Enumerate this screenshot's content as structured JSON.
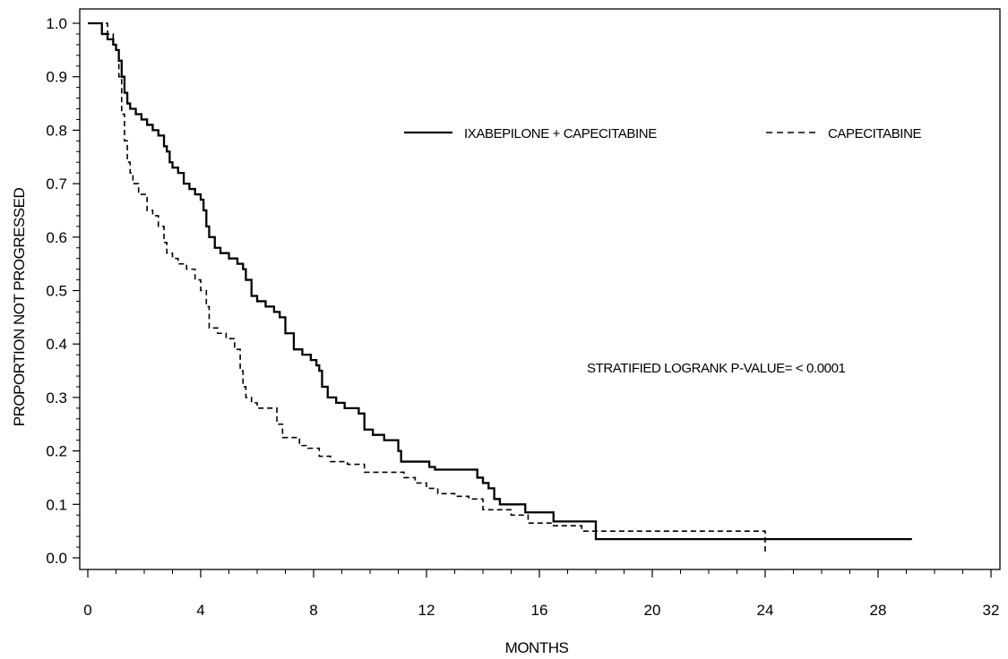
{
  "chart_data": {
    "type": "line",
    "title": "",
    "xlabel": "MONTHS",
    "ylabel": "PROPORTION NOT PROGRESSED",
    "xlim": [
      0,
      32
    ],
    "ylim": [
      0,
      1.0
    ],
    "x_ticks": [
      0,
      4,
      8,
      12,
      16,
      20,
      24,
      28,
      32
    ],
    "y_ticks": [
      0.0,
      0.1,
      0.2,
      0.3,
      0.4,
      0.5,
      0.6,
      0.7,
      0.8,
      0.9,
      1.0
    ],
    "x_tick_labels": [
      "0",
      "4",
      "8",
      "12",
      "16",
      "20",
      "24",
      "28",
      "32"
    ],
    "y_tick_labels": [
      "0.0",
      "0.1",
      "0.2",
      "0.3",
      "0.4",
      "0.5",
      "0.6",
      "0.7",
      "0.8",
      "0.9",
      "1.0"
    ],
    "grid": false,
    "legend_position": "top-right",
    "annotation": "STRATIFIED LOGRANK P-VALUE= < 0.0001",
    "series": [
      {
        "name": "IXABEPILONE + CAPECITABINE",
        "line_style": "solid",
        "color": "#000000",
        "x": [
          0,
          0.5,
          0.7,
          0.9,
          1.0,
          1.1,
          1.2,
          1.3,
          1.4,
          1.5,
          1.7,
          1.9,
          2.1,
          2.3,
          2.5,
          2.7,
          2.8,
          2.9,
          3.0,
          3.2,
          3.4,
          3.6,
          3.8,
          4.0,
          4.1,
          4.2,
          4.3,
          4.5,
          4.7,
          5.0,
          5.3,
          5.5,
          5.6,
          5.8,
          6.0,
          6.3,
          6.6,
          6.8,
          7.0,
          7.3,
          7.6,
          7.9,
          8.1,
          8.2,
          8.3,
          8.5,
          8.8,
          9.1,
          9.4,
          9.6,
          9.8,
          10.1,
          10.5,
          10.9,
          11.0,
          11.1,
          11.5,
          12.1,
          12.3,
          13.0,
          13.6,
          13.8,
          14.0,
          14.2,
          14.4,
          14.6,
          15.0,
          15.5,
          16.0,
          16.5,
          17.0,
          17.5,
          18.0,
          20.0,
          24.0,
          28.0,
          29.2
        ],
        "y": [
          1.0,
          0.98,
          0.97,
          0.96,
          0.95,
          0.93,
          0.9,
          0.87,
          0.85,
          0.84,
          0.83,
          0.82,
          0.81,
          0.8,
          0.79,
          0.77,
          0.76,
          0.74,
          0.73,
          0.72,
          0.7,
          0.69,
          0.68,
          0.67,
          0.65,
          0.62,
          0.6,
          0.58,
          0.57,
          0.56,
          0.55,
          0.54,
          0.52,
          0.49,
          0.48,
          0.47,
          0.46,
          0.45,
          0.42,
          0.39,
          0.38,
          0.37,
          0.36,
          0.35,
          0.32,
          0.3,
          0.29,
          0.28,
          0.28,
          0.27,
          0.24,
          0.23,
          0.22,
          0.22,
          0.2,
          0.18,
          0.18,
          0.17,
          0.165,
          0.165,
          0.165,
          0.15,
          0.14,
          0.13,
          0.11,
          0.1,
          0.1,
          0.085,
          0.085,
          0.068,
          0.068,
          0.068,
          0.035,
          0.035,
          0.035,
          0.035,
          0.035
        ]
      },
      {
        "name": "CAPECITABINE",
        "line_style": "dashed",
        "color": "#000000",
        "x": [
          0,
          0.7,
          0.9,
          1.0,
          1.1,
          1.2,
          1.3,
          1.4,
          1.5,
          1.6,
          1.8,
          2.1,
          2.3,
          2.5,
          2.7,
          2.8,
          3.0,
          3.2,
          3.5,
          3.8,
          4.0,
          4.2,
          4.3,
          4.6,
          4.9,
          5.2,
          5.4,
          5.5,
          5.6,
          5.8,
          6.0,
          6.5,
          6.7,
          6.9,
          7.5,
          7.8,
          8.2,
          8.6,
          9.2,
          9.8,
          10.2,
          11.2,
          11.6,
          12.0,
          12.4,
          13.0,
          13.5,
          14.0,
          15.0,
          15.6,
          16.5,
          17.0,
          17.5,
          18.0,
          20.0,
          24.0,
          24.0
        ],
        "y": [
          1.0,
          0.98,
          0.96,
          0.95,
          0.9,
          0.83,
          0.78,
          0.74,
          0.72,
          0.7,
          0.68,
          0.65,
          0.64,
          0.62,
          0.59,
          0.57,
          0.56,
          0.55,
          0.54,
          0.52,
          0.5,
          0.47,
          0.43,
          0.42,
          0.41,
          0.39,
          0.35,
          0.32,
          0.3,
          0.29,
          0.28,
          0.28,
          0.25,
          0.225,
          0.21,
          0.205,
          0.19,
          0.18,
          0.175,
          0.16,
          0.16,
          0.15,
          0.14,
          0.13,
          0.12,
          0.115,
          0.11,
          0.09,
          0.08,
          0.065,
          0.06,
          0.06,
          0.05,
          0.05,
          0.05,
          0.05,
          0.005
        ]
      }
    ]
  }
}
